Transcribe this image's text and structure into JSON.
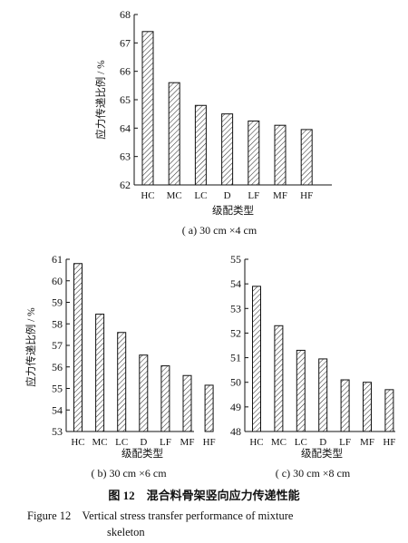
{
  "chart_data": [
    {
      "type": "bar",
      "caption": "( a)  30 cm ×4 cm",
      "xlabel": "级配类型",
      "ylabel": "应力传递比例 / %",
      "categories": [
        "HC",
        "MC",
        "LC",
        "D",
        "LF",
        "MF",
        "HF"
      ],
      "values": [
        67.4,
        65.6,
        64.8,
        64.5,
        64.25,
        64.1,
        63.95
      ],
      "ylim": [
        62,
        68
      ],
      "yticks": [
        "62",
        "63",
        "64",
        "65",
        "66",
        "67",
        "68"
      ],
      "grid": false,
      "pattern": "diagonal-hatch"
    },
    {
      "type": "bar",
      "caption": "( b)  30 cm ×6 cm",
      "xlabel": "级配类型",
      "ylabel": "应力传递比例 / %",
      "categories": [
        "HC",
        "MC",
        "LC",
        "D",
        "LF",
        "MF",
        "HF"
      ],
      "values": [
        60.8,
        58.45,
        57.6,
        56.55,
        56.05,
        55.6,
        55.15
      ],
      "ylim": [
        53,
        61
      ],
      "yticks": [
        "53",
        "54",
        "55",
        "56",
        "57",
        "58",
        "59",
        "60",
        "61"
      ],
      "grid": false,
      "pattern": "diagonal-hatch"
    },
    {
      "type": "bar",
      "caption": "( c)  30 cm ×8 cm",
      "xlabel": "级配类型",
      "ylabel": "",
      "categories": [
        "HC",
        "MC",
        "LC",
        "D",
        "LF",
        "MF",
        "HF"
      ],
      "values": [
        53.9,
        52.3,
        51.3,
        50.95,
        50.1,
        50.0,
        49.7
      ],
      "ylim": [
        48,
        55
      ],
      "yticks": [
        "48",
        "49",
        "50",
        "51",
        "52",
        "53",
        "54",
        "55"
      ],
      "grid": false,
      "pattern": "diagonal-hatch"
    }
  ],
  "figure": {
    "title_cn": "图 12    混合料骨架竖向应力传递性能",
    "title_en_line1": "Figure 12    Vertical stress transfer performance of mixture",
    "title_en_line2": "skeleton"
  }
}
